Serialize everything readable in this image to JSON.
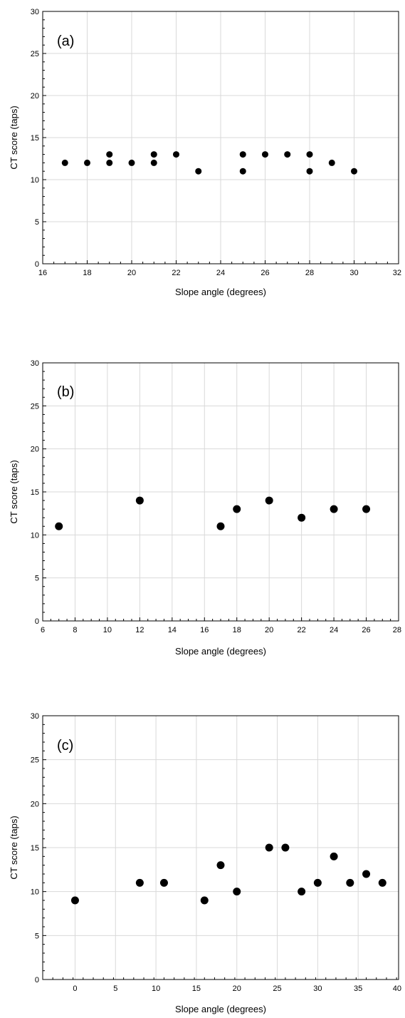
{
  "chart_data": [
    {
      "type": "scatter",
      "panel_label": "(a)",
      "xlabel": "Slope angle (degrees)",
      "ylabel": "CT score (taps)",
      "xlim": [
        16,
        32
      ],
      "ylim": [
        0,
        30
      ],
      "xticks": [
        16,
        18,
        20,
        22,
        24,
        26,
        28,
        30,
        32
      ],
      "yticks": [
        0,
        5,
        10,
        15,
        20,
        25,
        30
      ],
      "grid": true,
      "marker_color": "#000000",
      "points": [
        {
          "x": 17,
          "y": 12
        },
        {
          "x": 18,
          "y": 12
        },
        {
          "x": 19,
          "y": 12
        },
        {
          "x": 19,
          "y": 13
        },
        {
          "x": 20,
          "y": 12
        },
        {
          "x": 21,
          "y": 12
        },
        {
          "x": 21,
          "y": 13
        },
        {
          "x": 22,
          "y": 13
        },
        {
          "x": 23,
          "y": 11
        },
        {
          "x": 25,
          "y": 13
        },
        {
          "x": 25,
          "y": 11
        },
        {
          "x": 26,
          "y": 13
        },
        {
          "x": 27,
          "y": 13
        },
        {
          "x": 28,
          "y": 13
        },
        {
          "x": 28,
          "y": 11
        },
        {
          "x": 29,
          "y": 12
        },
        {
          "x": 30,
          "y": 11
        }
      ]
    },
    {
      "type": "scatter",
      "panel_label": "(b)",
      "xlabel": "Slope angle (degrees)",
      "ylabel": "CT score (taps)",
      "xlim": [
        6,
        28
      ],
      "ylim": [
        0,
        30
      ],
      "xticks": [
        6,
        8,
        10,
        12,
        14,
        16,
        18,
        20,
        22,
        24,
        26,
        28
      ],
      "yticks": [
        0,
        5,
        10,
        15,
        20,
        25,
        30
      ],
      "grid": true,
      "marker_color": "#000000",
      "points": [
        {
          "x": 7,
          "y": 11
        },
        {
          "x": 12,
          "y": 14
        },
        {
          "x": 17,
          "y": 11
        },
        {
          "x": 18,
          "y": 13
        },
        {
          "x": 20,
          "y": 14
        },
        {
          "x": 22,
          "y": 12
        },
        {
          "x": 24,
          "y": 13
        },
        {
          "x": 26,
          "y": 13
        }
      ]
    },
    {
      "type": "scatter",
      "panel_label": "(c)",
      "xlabel": "Slope angle (degrees)",
      "ylabel": "CT score (taps)",
      "xlim": [
        -4,
        40
      ],
      "ylim": [
        0,
        30
      ],
      "xticks": [
        0,
        5,
        10,
        15,
        20,
        25,
        30,
        35,
        40
      ],
      "yticks": [
        0,
        5,
        10,
        15,
        20,
        25,
        30
      ],
      "grid": true,
      "marker_color": "#000000",
      "points": [
        {
          "x": 0,
          "y": 9
        },
        {
          "x": 8,
          "y": 11
        },
        {
          "x": 11,
          "y": 11
        },
        {
          "x": 16,
          "y": 9
        },
        {
          "x": 18,
          "y": 13
        },
        {
          "x": 20,
          "y": 10
        },
        {
          "x": 24,
          "y": 15
        },
        {
          "x": 26,
          "y": 15
        },
        {
          "x": 28,
          "y": 10
        },
        {
          "x": 30,
          "y": 11
        },
        {
          "x": 32,
          "y": 14
        },
        {
          "x": 34,
          "y": 11
        },
        {
          "x": 36,
          "y": 12
        },
        {
          "x": 38,
          "y": 11
        }
      ]
    }
  ]
}
